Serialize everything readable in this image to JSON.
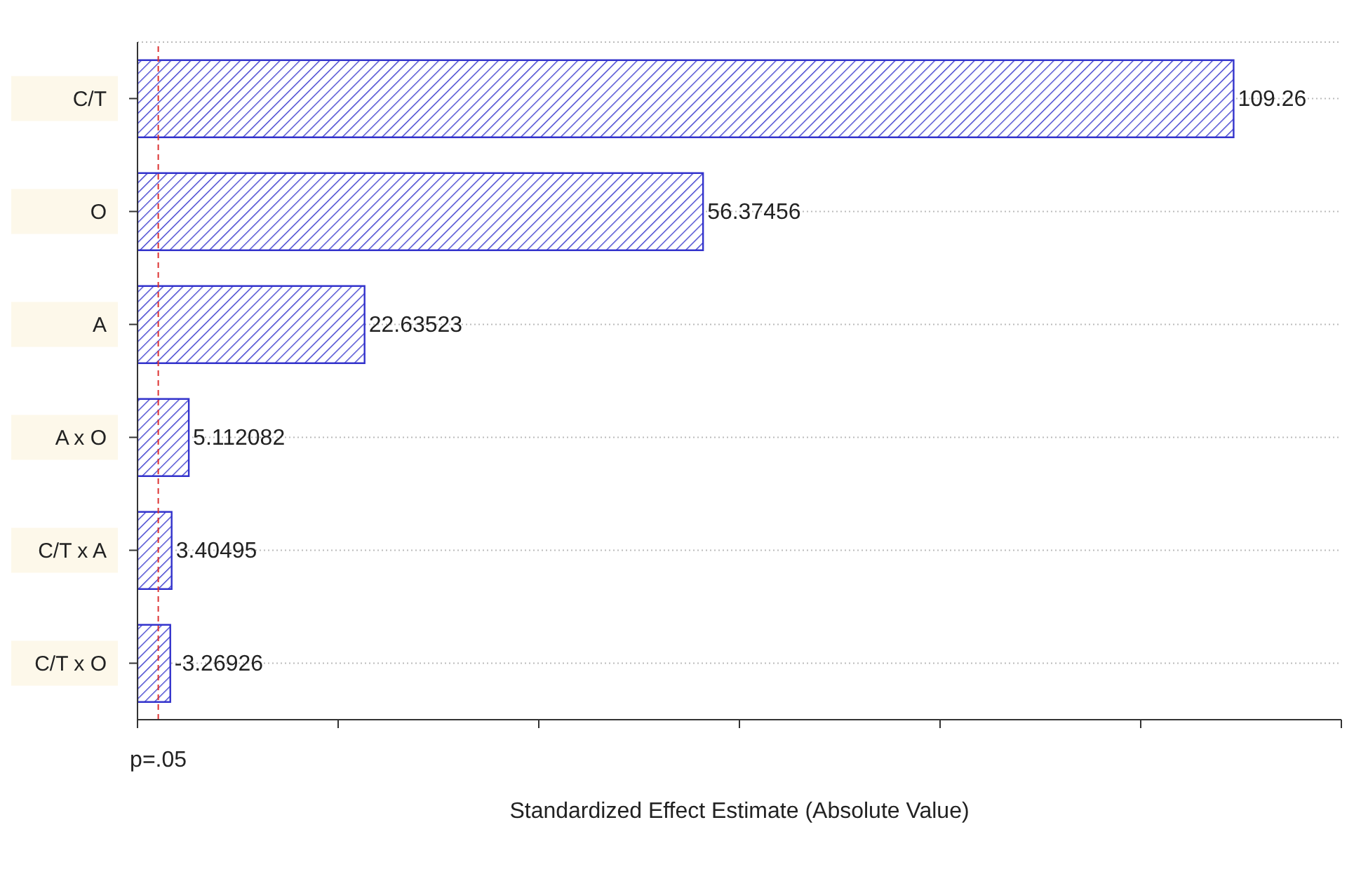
{
  "chart_data": {
    "type": "bar",
    "orientation": "horizontal",
    "categories": [
      "C/T",
      "O",
      "A",
      "A x O",
      "C/T x A",
      "C/T x O"
    ],
    "values": [
      109.26,
      56.37456,
      22.63523,
      5.112082,
      3.40495,
      3.26926
    ],
    "value_labels": [
      "109.26",
      "56.37456",
      "22.63523",
      "5.112082",
      "3.40495",
      null
    ],
    "annotations": [
      {
        "text": "-3.26926",
        "x": 3.26926,
        "y": "C/T x O"
      }
    ],
    "color": "#3333cc",
    "xlabel": "Standardized Effect Estimate (Absolute Value)",
    "xlim": [
      0,
      120
    ],
    "xticks": [
      {
        "value": 0,
        "label": null
      },
      {
        "value": 20,
        "label": null
      },
      {
        "value": 40,
        "label": null
      },
      {
        "value": 60,
        "label": null
      },
      {
        "value": 80,
        "label": null
      },
      {
        "value": 100,
        "label": null
      },
      {
        "value": 120,
        "label": null
      }
    ],
    "ref_lines": [
      {
        "axis": "x",
        "value": 2.07,
        "label": "p=.05",
        "color": "#dd3333",
        "line_style": "dashed"
      }
    ],
    "grid": "y"
  }
}
